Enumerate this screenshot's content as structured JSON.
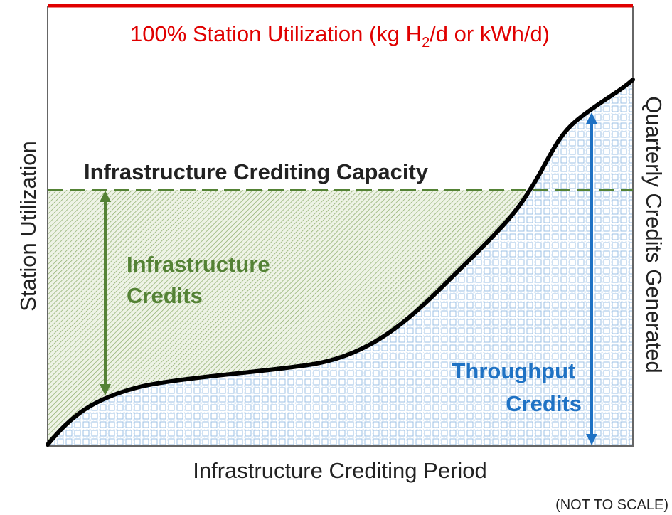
{
  "title": {
    "main": "100% Station Utilization (kg H",
    "subscript": "2",
    "rest": "/d or kWh/d)"
  },
  "y_axis_label": "Station Utilization",
  "y2_axis_label": "Quarterly Credits Generated",
  "x_axis_label": "Infrastructure Crediting Period",
  "capacity_label": "Infrastructure Crediting Capacity",
  "infrastructure_credits": [
    "Infrastructure",
    "Credits"
  ],
  "throughput_credits": [
    "Throughput",
    "Credits"
  ],
  "note": "(NOT TO SCALE)"
}
